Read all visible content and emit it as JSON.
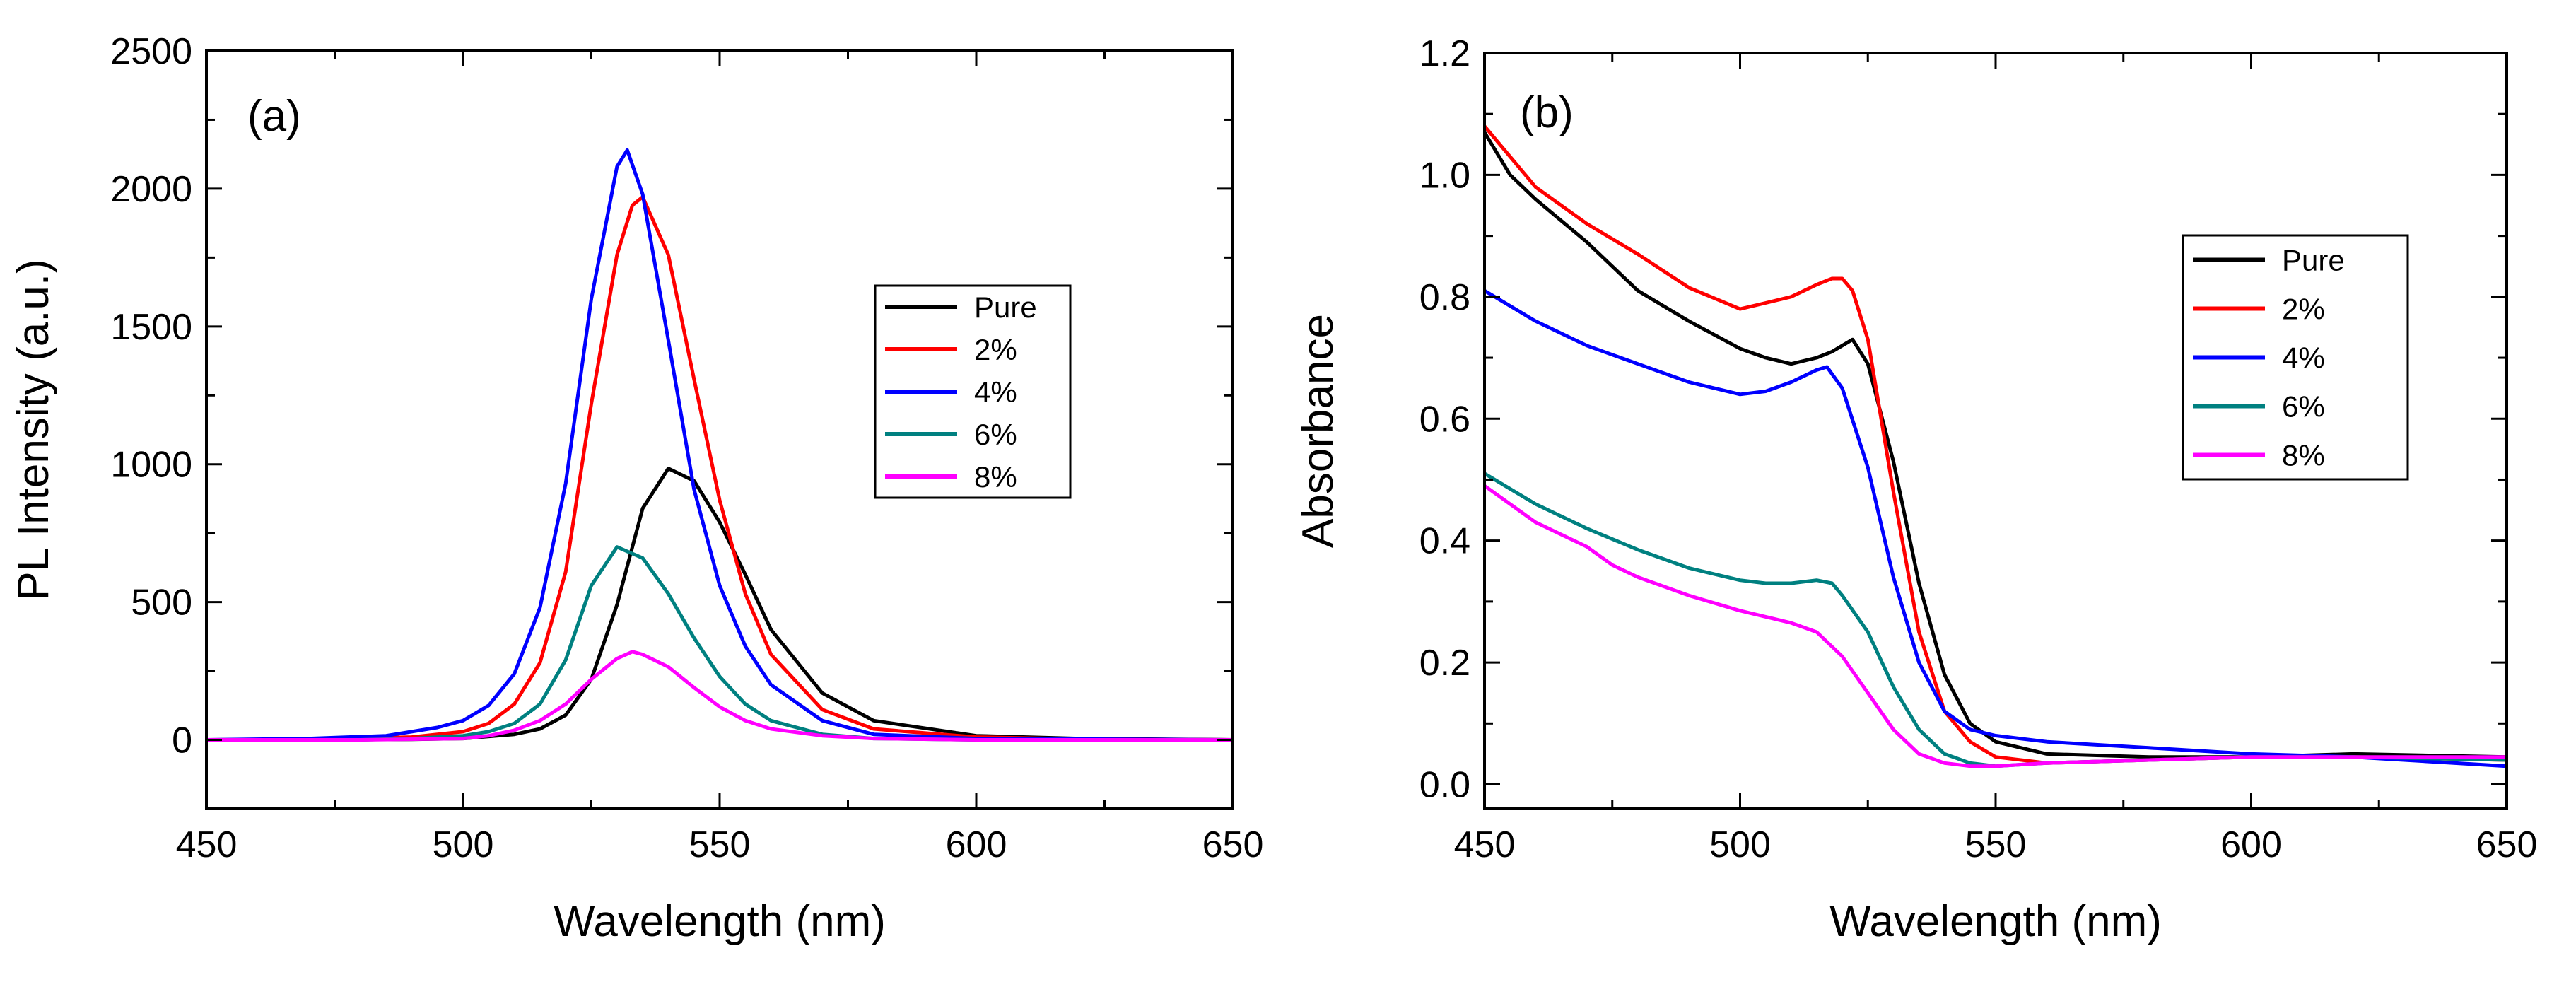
{
  "chart_data": [
    {
      "type": "line",
      "panel_label": "(a)",
      "xlabel": "Wavelength (nm)",
      "ylabel": "PL Intensity (a.u.)",
      "xlim": [
        450,
        650
      ],
      "ylim": [
        -250,
        2500
      ],
      "xticks": [
        450,
        500,
        550,
        600,
        650
      ],
      "yticks": [
        0,
        500,
        1000,
        1500,
        2000,
        2500
      ],
      "legend_position": "right",
      "series": [
        {
          "name": "Pure",
          "color": "#000000",
          "x": [
            450,
            470,
            490,
            500,
            510,
            515,
            520,
            525,
            530,
            535,
            540,
            545,
            550,
            555,
            560,
            570,
            580,
            600,
            620,
            650
          ],
          "y": [
            0,
            0,
            2,
            5,
            20,
            40,
            90,
            220,
            490,
            840,
            985,
            940,
            790,
            600,
            400,
            170,
            70,
            15,
            5,
            0
          ]
        },
        {
          "name": "2%",
          "color": "#ff0000",
          "x": [
            450,
            470,
            490,
            500,
            505,
            510,
            515,
            520,
            525,
            530,
            533,
            535,
            540,
            545,
            550,
            555,
            560,
            570,
            580,
            600,
            620,
            650
          ],
          "y": [
            0,
            2,
            10,
            30,
            60,
            130,
            280,
            610,
            1220,
            1760,
            1940,
            1970,
            1760,
            1310,
            870,
            530,
            310,
            110,
            40,
            10,
            3,
            0
          ]
        },
        {
          "name": "4%",
          "color": "#0000ff",
          "x": [
            450,
            470,
            485,
            490,
            495,
            500,
            505,
            510,
            515,
            520,
            525,
            530,
            532,
            535,
            540,
            545,
            550,
            555,
            560,
            570,
            580,
            600,
            650
          ],
          "y": [
            0,
            5,
            15,
            30,
            45,
            70,
            125,
            240,
            480,
            930,
            1600,
            2080,
            2140,
            1980,
            1450,
            910,
            560,
            340,
            200,
            70,
            20,
            5,
            0
          ]
        },
        {
          "name": "6%",
          "color": "#008080",
          "x": [
            450,
            480,
            490,
            500,
            505,
            510,
            515,
            520,
            525,
            530,
            535,
            540,
            545,
            550,
            555,
            560,
            570,
            580,
            600,
            650
          ],
          "y": [
            0,
            0,
            5,
            15,
            30,
            60,
            130,
            290,
            560,
            700,
            660,
            530,
            370,
            230,
            130,
            70,
            20,
            5,
            0,
            0
          ]
        },
        {
          "name": "8%",
          "color": "#ff00ff",
          "x": [
            450,
            480,
            500,
            505,
            510,
            515,
            520,
            525,
            530,
            533,
            535,
            540,
            545,
            550,
            555,
            560,
            570,
            580,
            600,
            650
          ],
          "y": [
            0,
            0,
            5,
            15,
            35,
            70,
            130,
            220,
            295,
            320,
            310,
            265,
            190,
            120,
            70,
            40,
            15,
            5,
            0,
            0
          ]
        }
      ]
    },
    {
      "type": "line",
      "panel_label": "(b)",
      "xlabel": "Wavelength (nm)",
      "ylabel": "Absorbance",
      "xlim": [
        450,
        650
      ],
      "ylim": [
        -0.04,
        1.2
      ],
      "xticks": [
        450,
        500,
        550,
        600,
        650
      ],
      "yticks": [
        0.0,
        0.2,
        0.4,
        0.6,
        0.8,
        1.0,
        1.2
      ],
      "legend_position": "right",
      "series": [
        {
          "name": "Pure",
          "color": "#000000",
          "x": [
            450,
            455,
            460,
            470,
            480,
            490,
            500,
            505,
            510,
            515,
            518,
            520,
            522,
            525,
            530,
            535,
            540,
            545,
            550,
            560,
            580,
            600,
            620,
            650
          ],
          "y": [
            1.07,
            1.0,
            0.96,
            0.89,
            0.81,
            0.76,
            0.715,
            0.7,
            0.69,
            0.7,
            0.71,
            0.72,
            0.73,
            0.69,
            0.53,
            0.33,
            0.18,
            0.1,
            0.07,
            0.05,
            0.045,
            0.045,
            0.05,
            0.045
          ]
        },
        {
          "name": "2%",
          "color": "#ff0000",
          "x": [
            450,
            455,
            460,
            470,
            480,
            490,
            500,
            505,
            510,
            515,
            518,
            520,
            522,
            525,
            530,
            535,
            540,
            545,
            550,
            560,
            580,
            600,
            620,
            650
          ],
          "y": [
            1.08,
            1.03,
            0.98,
            0.92,
            0.87,
            0.815,
            0.78,
            0.79,
            0.8,
            0.82,
            0.83,
            0.83,
            0.81,
            0.73,
            0.48,
            0.25,
            0.12,
            0.07,
            0.045,
            0.035,
            0.04,
            0.045,
            0.045,
            0.04
          ]
        },
        {
          "name": "4%",
          "color": "#0000ff",
          "x": [
            450,
            460,
            470,
            480,
            490,
            500,
            505,
            510,
            515,
            517,
            520,
            525,
            530,
            535,
            540,
            545,
            550,
            560,
            580,
            600,
            620,
            650
          ],
          "y": [
            0.81,
            0.76,
            0.72,
            0.69,
            0.66,
            0.64,
            0.645,
            0.66,
            0.68,
            0.685,
            0.65,
            0.52,
            0.34,
            0.2,
            0.12,
            0.09,
            0.08,
            0.07,
            0.06,
            0.05,
            0.045,
            0.03
          ]
        },
        {
          "name": "6%",
          "color": "#008080",
          "x": [
            450,
            460,
            470,
            480,
            490,
            500,
            505,
            510,
            515,
            518,
            520,
            525,
            530,
            535,
            540,
            545,
            550,
            560,
            580,
            600,
            620,
            650
          ],
          "y": [
            0.51,
            0.46,
            0.42,
            0.385,
            0.355,
            0.335,
            0.33,
            0.33,
            0.335,
            0.33,
            0.31,
            0.25,
            0.16,
            0.09,
            0.05,
            0.035,
            0.03,
            0.035,
            0.04,
            0.045,
            0.045,
            0.04
          ]
        },
        {
          "name": "8%",
          "color": "#ff00ff",
          "x": [
            450,
            460,
            470,
            475,
            480,
            490,
            500,
            505,
            510,
            515,
            520,
            525,
            530,
            535,
            540,
            545,
            550,
            560,
            580,
            600,
            620,
            650
          ],
          "y": [
            0.49,
            0.43,
            0.39,
            0.36,
            0.34,
            0.31,
            0.285,
            0.275,
            0.265,
            0.25,
            0.21,
            0.15,
            0.09,
            0.05,
            0.035,
            0.03,
            0.03,
            0.035,
            0.04,
            0.045,
            0.045,
            0.045
          ]
        }
      ]
    }
  ]
}
